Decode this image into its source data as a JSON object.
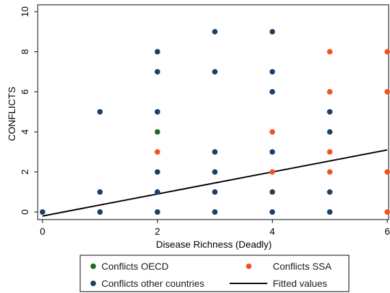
{
  "chart_data": {
    "type": "scatter",
    "xlabel": "Disease Richness (Deadly)",
    "ylabel": "CONFLICTS",
    "xlim": [
      0,
      6
    ],
    "ylim": [
      0,
      10
    ],
    "x_ticks": [
      0,
      2,
      4,
      6
    ],
    "y_ticks": [
      0,
      2,
      4,
      6,
      8,
      10
    ],
    "grid": false,
    "legend_position": "bottom",
    "colors": {
      "oecd": "#1c6b1c",
      "ssa": "#f4511e",
      "other": "#1b3f66",
      "fit": "#000000"
    },
    "series": [
      {
        "name": "Conflicts OECD",
        "kind": "points",
        "color_key": "oecd",
        "points": [
          [
            2,
            4
          ]
        ]
      },
      {
        "name": "Conflicts SSA",
        "kind": "points",
        "color_key": "ssa",
        "points": [
          [
            2,
            3
          ],
          [
            4,
            4
          ],
          [
            4,
            2
          ],
          [
            5,
            8
          ],
          [
            5,
            6
          ],
          [
            5,
            3
          ],
          [
            5,
            2
          ],
          [
            6,
            8
          ],
          [
            6,
            6
          ],
          [
            6,
            2
          ],
          [
            6,
            0
          ]
        ]
      },
      {
        "name": "Conflicts other countries",
        "kind": "points",
        "color_key": "other",
        "points": [
          [
            0,
            0
          ],
          [
            1,
            5
          ],
          [
            1,
            1
          ],
          [
            1,
            0
          ],
          [
            2,
            8
          ],
          [
            2,
            7
          ],
          [
            2,
            5
          ],
          [
            2,
            2
          ],
          [
            2,
            1
          ],
          [
            2,
            0
          ],
          [
            3,
            9
          ],
          [
            3,
            7
          ],
          [
            3,
            3
          ],
          [
            3,
            2
          ],
          [
            3,
            1
          ],
          [
            3,
            0
          ],
          [
            4,
            9
          ],
          [
            4,
            7
          ],
          [
            4,
            6
          ],
          [
            4,
            3
          ],
          [
            4,
            1
          ],
          [
            4,
            0
          ],
          [
            5,
            5
          ],
          [
            5,
            4
          ],
          [
            5,
            1
          ],
          [
            5,
            0
          ]
        ]
      },
      {
        "name": "Fitted values",
        "kind": "line",
        "color_key": "fit",
        "points": [
          [
            0,
            -0.2
          ],
          [
            6,
            3.1
          ]
        ]
      }
    ]
  }
}
